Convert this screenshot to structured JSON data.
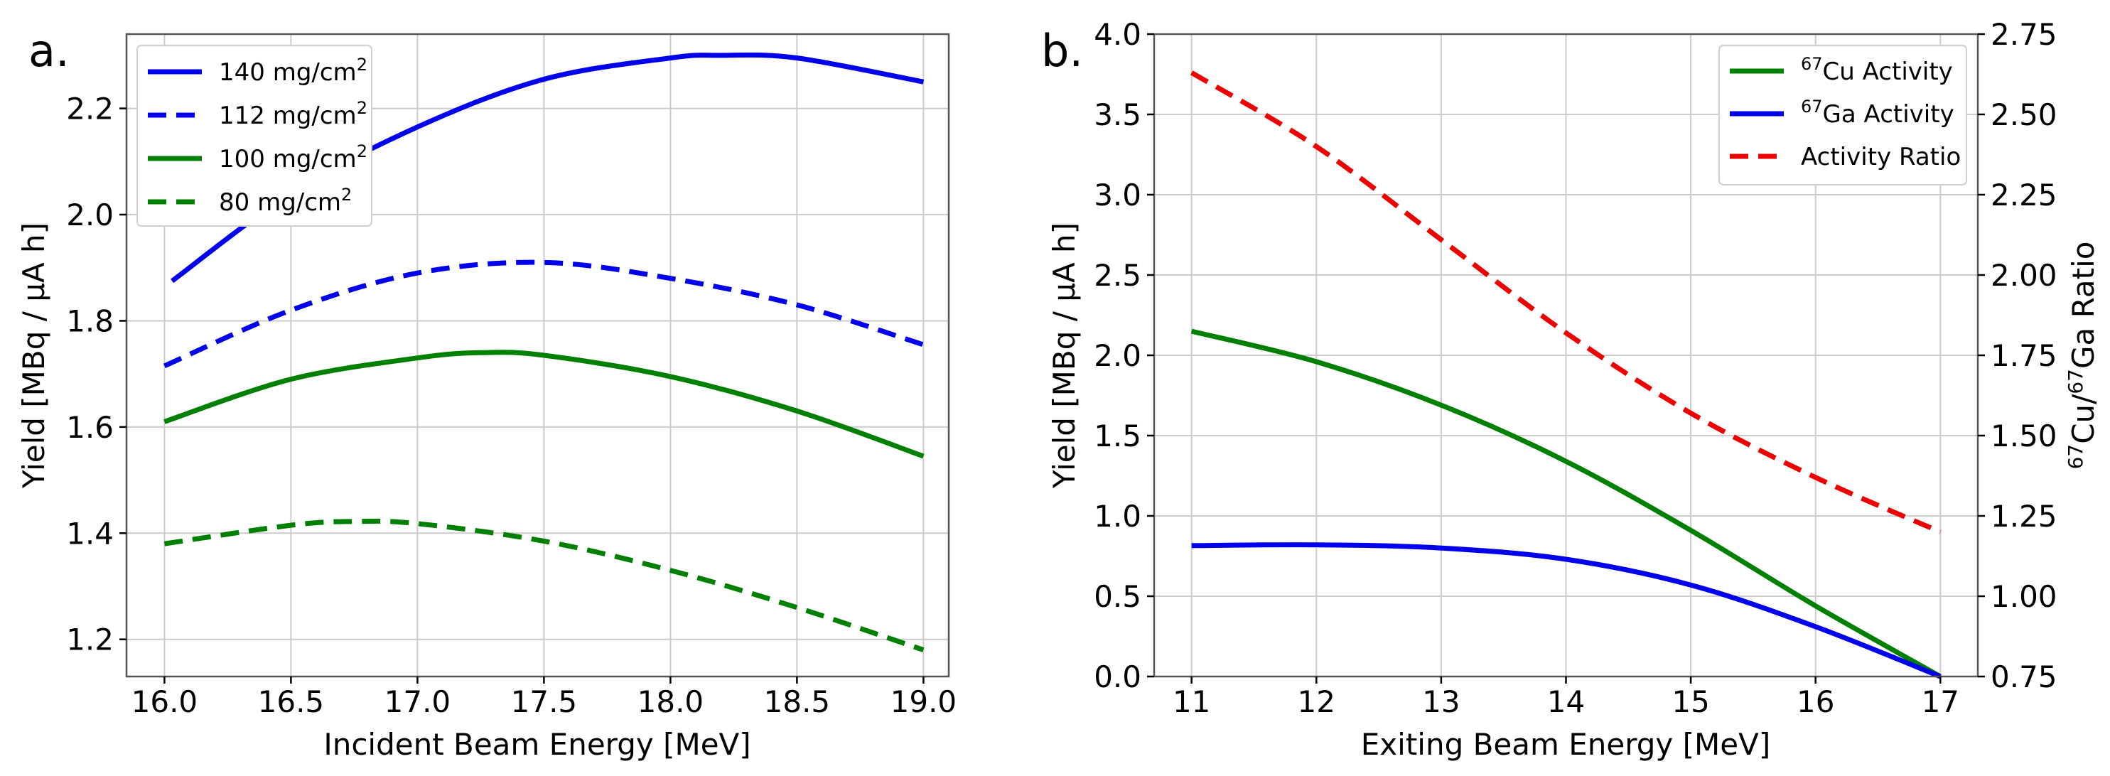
{
  "chart_data": [
    {
      "panel_label": "a.",
      "type": "line",
      "xlabel": "Incident Beam Energy [MeV]",
      "ylabel": "Yield [MBq / μA h]",
      "xlim": [
        15.85,
        19.1
      ],
      "ylim": [
        1.13,
        2.34
      ],
      "xticks": [
        16.0,
        16.5,
        17.0,
        17.5,
        18.0,
        18.5,
        19.0
      ],
      "xtick_labels": [
        "16.0",
        "16.5",
        "17.0",
        "17.5",
        "18.0",
        "18.5",
        "19.0"
      ],
      "yticks": [
        1.2,
        1.4,
        1.6,
        1.8,
        2.0,
        2.2
      ],
      "ytick_labels": [
        "1.2",
        "1.4",
        "1.6",
        "1.8",
        "2.0",
        "2.2"
      ],
      "grid": true,
      "legend_position": "top-left",
      "series": [
        {
          "name": "140 mg/cm",
          "sup": "2",
          "color": "#0000ee",
          "dash": "solid",
          "x": [
            16.03,
            16.5,
            17.0,
            17.5,
            18.0,
            18.2,
            18.5,
            19.0
          ],
          "y": [
            1.875,
            2.04,
            2.165,
            2.255,
            2.295,
            2.3,
            2.295,
            2.25
          ]
        },
        {
          "name": "112 mg/cm",
          "sup": "2",
          "color": "#0000ee",
          "dash": "dashed",
          "x": [
            16.0,
            16.5,
            17.0,
            17.5,
            18.0,
            18.5,
            19.0
          ],
          "y": [
            1.715,
            1.82,
            1.89,
            1.91,
            1.88,
            1.83,
            1.755
          ]
        },
        {
          "name": "100 mg/cm",
          "sup": "2",
          "color": "#008000",
          "dash": "solid",
          "x": [
            16.0,
            16.5,
            17.0,
            17.25,
            17.5,
            18.0,
            18.5,
            19.0
          ],
          "y": [
            1.61,
            1.69,
            1.73,
            1.74,
            1.735,
            1.695,
            1.63,
            1.545
          ]
        },
        {
          "name": "80 mg/cm",
          "sup": "2",
          "color": "#008000",
          "dash": "dashed",
          "x": [
            16.0,
            16.5,
            16.75,
            17.0,
            17.5,
            18.0,
            18.5,
            19.0
          ],
          "y": [
            1.38,
            1.415,
            1.422,
            1.418,
            1.385,
            1.33,
            1.26,
            1.18
          ]
        }
      ]
    },
    {
      "panel_label": "b.",
      "type": "line",
      "xlabel": "Exiting Beam Energy [MeV]",
      "ylabel": "Yield [MBq / μA h]",
      "ylabel_right": "67Cu/67Ga Ratio",
      "ylabel_right_parts": {
        "sup1": "67",
        "base1": "Cu/",
        "sup2": "67",
        "base2": "Ga Ratio"
      },
      "xlim": [
        10.7,
        17.3
      ],
      "ylim": [
        0.0,
        4.0
      ],
      "ylim_right": [
        0.75,
        2.75
      ],
      "xticks": [
        11,
        12,
        13,
        14,
        15,
        16,
        17
      ],
      "xtick_labels": [
        "11",
        "12",
        "13",
        "14",
        "15",
        "16",
        "17"
      ],
      "yticks": [
        0.0,
        0.5,
        1.0,
        1.5,
        2.0,
        2.5,
        3.0,
        3.5,
        4.0
      ],
      "ytick_labels": [
        "0.0",
        "0.5",
        "1.0",
        "1.5",
        "2.0",
        "2.5",
        "3.0",
        "3.5",
        "4.0"
      ],
      "yticks_right": [
        0.75,
        1.0,
        1.25,
        1.5,
        1.75,
        2.0,
        2.25,
        2.5,
        2.75
      ],
      "ytick_labels_right": [
        "0.75",
        "1.00",
        "1.25",
        "1.50",
        "1.75",
        "2.00",
        "2.25",
        "2.50",
        "2.75"
      ],
      "grid": true,
      "legend_position": "top-right",
      "series": [
        {
          "name": "Cu Activity",
          "sup": "67",
          "color": "#008000",
          "dash": "solid",
          "axis": "left",
          "x": [
            11,
            12,
            13,
            14,
            15,
            16,
            17
          ],
          "y": [
            2.15,
            1.96,
            1.69,
            1.34,
            0.91,
            0.44,
            0.0
          ]
        },
        {
          "name": "Ga Activity",
          "sup": "67",
          "color": "#0000ee",
          "dash": "solid",
          "axis": "left",
          "x": [
            11,
            12,
            13,
            14,
            15,
            16,
            17
          ],
          "y": [
            0.815,
            0.82,
            0.8,
            0.73,
            0.57,
            0.31,
            0.0
          ]
        },
        {
          "name": "Activity Ratio",
          "sup": "",
          "color": "#ee0000",
          "dash": "dashed",
          "axis": "right",
          "x": [
            11,
            12,
            13,
            14,
            15,
            16,
            17
          ],
          "y": [
            2.63,
            2.4,
            2.11,
            1.82,
            1.57,
            1.37,
            1.2
          ]
        }
      ]
    }
  ]
}
